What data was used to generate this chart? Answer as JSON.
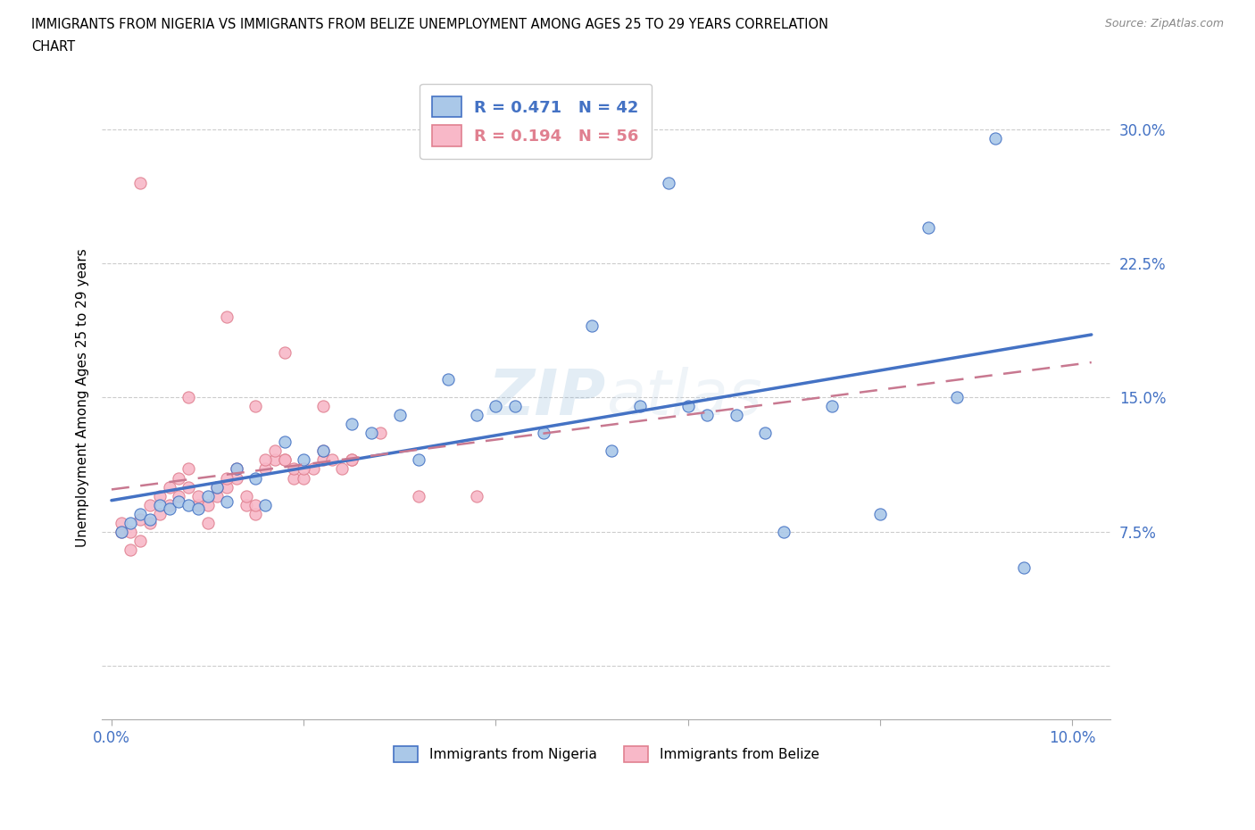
{
  "title_line1": "IMMIGRANTS FROM NIGERIA VS IMMIGRANTS FROM BELIZE UNEMPLOYMENT AMONG AGES 25 TO 29 YEARS CORRELATION",
  "title_line2": "CHART",
  "source": "Source: ZipAtlas.com",
  "ylabel": "Unemployment Among Ages 25 to 29 years",
  "nigeria_color": "#aac8e8",
  "nigeria_edge_color": "#4472c4",
  "belize_color": "#f8b8c8",
  "belize_edge_color": "#e08090",
  "nigeria_line_color": "#4472c4",
  "belize_line_color": "#c87890",
  "axis_label_color": "#4472c4",
  "grid_color": "#cccccc",
  "ytick_vals": [
    0.0,
    0.075,
    0.15,
    0.225,
    0.3
  ],
  "ytick_labels": [
    "",
    "7.5%",
    "15.0%",
    "22.5%",
    "30.0%"
  ],
  "xtick_vals": [
    0.0,
    0.02,
    0.04,
    0.06,
    0.08,
    0.1
  ],
  "xtick_labels": [
    "0.0%",
    "",
    "",
    "",
    "",
    "10.0%"
  ],
  "nigeria_R": 0.471,
  "nigeria_N": 42,
  "belize_R": 0.194,
  "belize_N": 56,
  "nigeria_x": [
    0.001,
    0.002,
    0.003,
    0.004,
    0.005,
    0.006,
    0.007,
    0.008,
    0.009,
    0.01,
    0.011,
    0.012,
    0.013,
    0.015,
    0.016,
    0.018,
    0.02,
    0.022,
    0.025,
    0.027,
    0.03,
    0.032,
    0.035,
    0.038,
    0.04,
    0.042,
    0.045,
    0.05,
    0.052,
    0.055,
    0.058,
    0.06,
    0.062,
    0.065,
    0.068,
    0.07,
    0.075,
    0.08,
    0.085,
    0.088,
    0.092,
    0.095
  ],
  "nigeria_y": [
    0.075,
    0.08,
    0.085,
    0.082,
    0.09,
    0.088,
    0.092,
    0.09,
    0.088,
    0.095,
    0.1,
    0.092,
    0.11,
    0.105,
    0.09,
    0.125,
    0.115,
    0.12,
    0.135,
    0.13,
    0.14,
    0.115,
    0.16,
    0.14,
    0.145,
    0.145,
    0.13,
    0.19,
    0.12,
    0.145,
    0.27,
    0.145,
    0.14,
    0.14,
    0.13,
    0.075,
    0.145,
    0.085,
    0.245,
    0.15,
    0.295,
    0.055
  ],
  "belize_x": [
    0.001,
    0.002,
    0.003,
    0.004,
    0.005,
    0.006,
    0.007,
    0.008,
    0.009,
    0.01,
    0.011,
    0.012,
    0.013,
    0.014,
    0.015,
    0.016,
    0.017,
    0.018,
    0.019,
    0.02,
    0.021,
    0.022,
    0.023,
    0.024,
    0.025,
    0.001,
    0.002,
    0.003,
    0.004,
    0.005,
    0.006,
    0.007,
    0.008,
    0.009,
    0.01,
    0.011,
    0.012,
    0.013,
    0.014,
    0.015,
    0.016,
    0.017,
    0.018,
    0.019,
    0.02,
    0.022,
    0.025,
    0.028,
    0.032,
    0.038,
    0.008,
    0.015,
    0.022,
    0.003,
    0.012,
    0.018
  ],
  "belize_y": [
    0.075,
    0.065,
    0.07,
    0.08,
    0.085,
    0.09,
    0.095,
    0.1,
    0.09,
    0.08,
    0.095,
    0.1,
    0.105,
    0.09,
    0.085,
    0.11,
    0.115,
    0.115,
    0.105,
    0.105,
    0.11,
    0.115,
    0.115,
    0.11,
    0.115,
    0.08,
    0.075,
    0.082,
    0.09,
    0.095,
    0.1,
    0.105,
    0.11,
    0.095,
    0.09,
    0.1,
    0.105,
    0.11,
    0.095,
    0.09,
    0.115,
    0.12,
    0.115,
    0.11,
    0.11,
    0.12,
    0.115,
    0.13,
    0.095,
    0.095,
    0.15,
    0.145,
    0.145,
    0.27,
    0.195,
    0.175
  ]
}
